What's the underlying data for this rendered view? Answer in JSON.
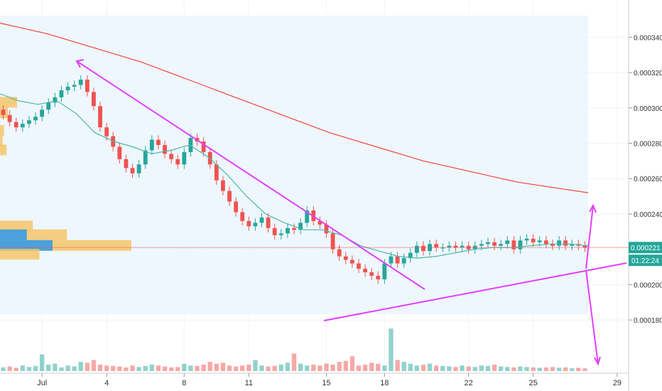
{
  "chart_data": {
    "type": "candlestick",
    "x_ticks": [
      "Jul",
      "4",
      "8",
      "11",
      "15",
      "18",
      "22",
      "25",
      "29"
    ],
    "x_tick_index": [
      6,
      16,
      28,
      38,
      50,
      59,
      72,
      82,
      95
    ],
    "y_ticks": [
      "0.000340",
      "0.000320",
      "0.000300",
      "0.000280",
      "0.000260",
      "0.000240",
      "0.000200",
      "0.000180"
    ],
    "y_tick_values": [
      0.00034,
      0.00032,
      0.0003,
      0.00028,
      0.00026,
      0.00024,
      0.0002,
      0.00018
    ],
    "ylim": [
      0.000172,
      0.000349
    ],
    "current_price_label": "0.000221",
    "current_price": 0.000221,
    "countdown_label": "01:22:24",
    "colors": {
      "up": "#26a69a",
      "down": "#ef5350",
      "ema_long": "#f44336",
      "ema_short": "#4db6ac",
      "trendline": "#e040fb",
      "current_price": "#ef5350",
      "badge": "#26a69a",
      "volume_profile": "#f5c66a",
      "volume_profile_value": "#2196f3",
      "background_zone": "#eef7fd"
    },
    "candles_close": [
      0.000296,
      0.000292,
      0.000289,
      0.000291,
      0.000293,
      0.000295,
      0.000299,
      0.000303,
      0.000306,
      0.00031,
      0.000312,
      0.000313,
      0.000316,
      0.000309,
      0.000301,
      0.000289,
      0.000284,
      0.000278,
      0.000271,
      0.000266,
      0.000263,
      0.000268,
      0.000276,
      0.000282,
      0.000279,
      0.000274,
      0.000271,
      0.000268,
      0.000275,
      0.000283,
      0.000281,
      0.000275,
      0.000268,
      0.000259,
      0.000253,
      0.000247,
      0.000241,
      0.000236,
      0.000233,
      0.000235,
      0.000238,
      0.000232,
      0.000228,
      0.000229,
      0.000232,
      0.000231,
      0.000235,
      0.000242,
      0.000236,
      0.000234,
      0.000229,
      0.00022,
      0.000216,
      0.000214,
      0.000212,
      0.000209,
      0.000207,
      0.000205,
      0.000203,
      0.000212,
      0.000216,
      0.000212,
      0.000215,
      0.000218,
      0.000222,
      0.000219,
      0.000223,
      0.000221,
      0.000221,
      0.000222,
      0.000221,
      0.000222,
      0.00022,
      0.000222,
      0.000223,
      0.000224,
      0.000222,
      0.000223,
      0.000225,
      0.00022,
      0.000225,
      0.000226,
      0.000224,
      0.000225,
      0.000223,
      0.000222,
      0.000225,
      0.000222,
      0.000223,
      0.000222,
      0.000221
    ],
    "volume_relative": [
      0.2,
      0.25,
      0.18,
      0.3,
      0.22,
      0.28,
      0.9,
      0.35,
      0.4,
      0.2,
      0.3,
      0.25,
      0.5,
      0.45,
      0.6,
      0.35,
      0.3,
      0.28,
      0.25,
      0.2,
      0.3,
      0.22,
      0.28,
      0.35,
      0.3,
      0.25,
      0.2,
      0.22,
      0.4,
      0.3,
      0.28,
      0.35,
      0.5,
      0.4,
      0.45,
      0.3,
      0.25,
      0.3,
      0.35,
      0.6,
      0.3,
      0.25,
      0.28,
      0.35,
      0.45,
      0.95,
      0.4,
      0.3,
      0.35,
      0.3,
      0.4,
      0.35,
      0.5,
      0.55,
      0.8,
      0.3,
      0.35,
      0.45,
      0.4,
      0.3,
      2.3,
      0.6,
      0.5,
      0.4,
      0.3,
      0.35,
      0.4,
      0.3,
      0.28,
      0.25,
      0.22,
      0.3,
      0.25,
      0.22,
      0.3,
      0.28,
      0.35,
      0.25,
      0.22,
      0.2,
      0.25,
      0.22,
      0.2,
      0.18,
      0.2,
      0.22,
      0.18,
      0.2,
      0.15,
      0.18,
      0.15
    ],
    "ema_long": [
      0.000348,
      0.000345,
      0.000342,
      0.000338,
      0.000334,
      0.00033,
      0.000326,
      0.000321,
      0.000316,
      0.000311,
      0.000306,
      0.000301,
      0.000296,
      0.000291,
      0.000286,
      0.000282,
      0.000278,
      0.000274,
      0.00027,
      0.000267,
      0.000264,
      0.000261,
      0.000258,
      0.000256,
      0.000254,
      0.000252
    ],
    "ema_short": [
      0.000308,
      0.000304,
      0.000302,
      0.000304,
      0.000297,
      0.000286,
      0.000281,
      0.000278,
      0.000274,
      0.000276,
      0.000279,
      0.000272,
      0.000262,
      0.00025,
      0.00024,
      0.000235,
      0.000231,
      0.000231,
      0.000228,
      0.000222,
      0.000219,
      0.000216,
      0.000215,
      0.000216,
      0.000218,
      0.00022,
      0.000221,
      0.000221,
      0.000222,
      0.000223,
      0.000223,
      0.000222
    ],
    "volume_profile_relative": [
      0.13,
      0.06,
      0.03,
      0.02,
      0.05,
      0.0,
      0.25,
      0.51,
      1.0,
      0.3
    ],
    "volume_profile_prices": [
      0.000303,
      0.000297,
      0.000287,
      0.000281,
      0.000276,
      0.0,
      0.000233,
      0.000228,
      0.000222,
      0.000217
    ]
  }
}
